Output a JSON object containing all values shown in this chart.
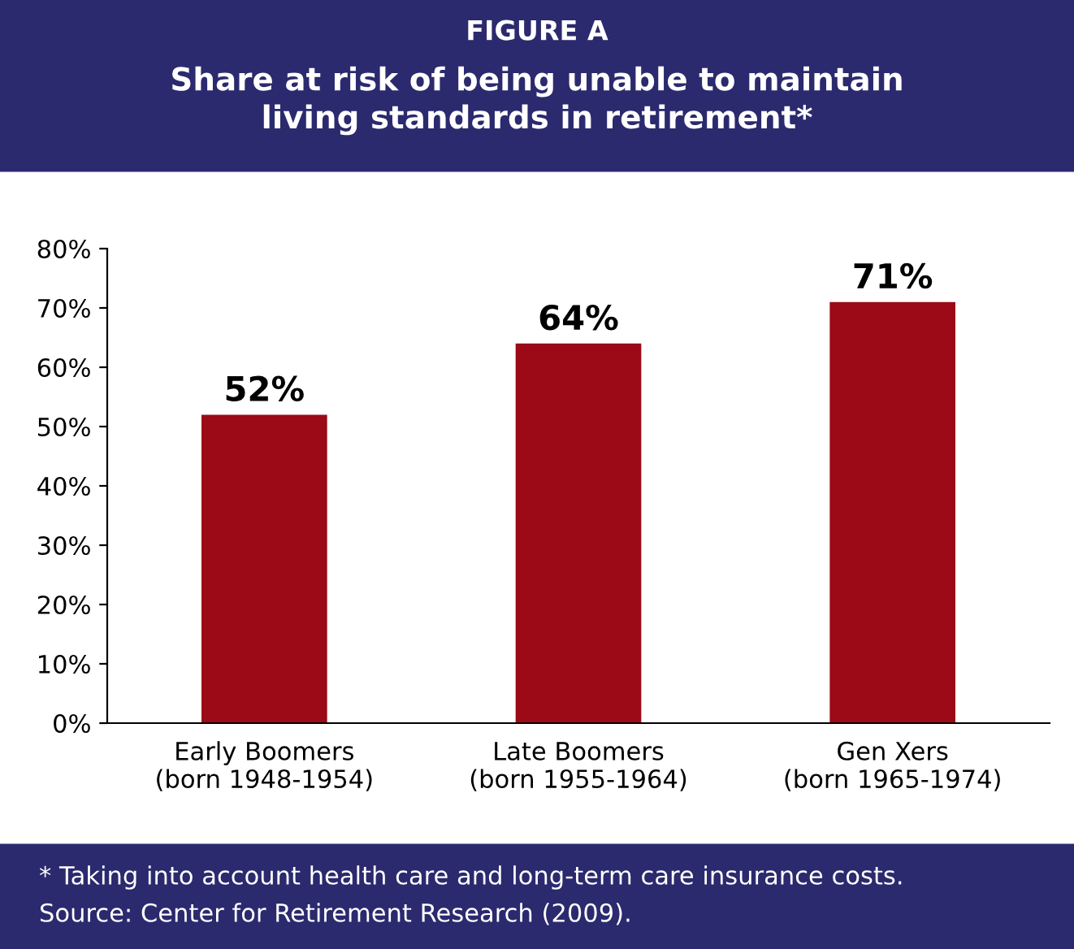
{
  "chart_data": {
    "type": "bar",
    "title": "FIGURE A",
    "subtitle": "Share at risk of being unable to maintain\nliving standards in retirement*",
    "categories": [
      "Early Boomers\n(born 1948-1954)",
      "Late Boomers\n(born 1955-1964)",
      "Gen Xers\n(born 1965-1974)"
    ],
    "values": [
      52,
      64,
      71
    ],
    "color": "#9b0a16",
    "value_labels": [
      "52%",
      "64%",
      "71%"
    ],
    "ylim": [
      0,
      80
    ],
    "yticks": [
      {
        "value": 0,
        "label": "0%"
      },
      {
        "value": 10,
        "label": "10%"
      },
      {
        "value": 20,
        "label": "20%"
      },
      {
        "value": 30,
        "label": "30%"
      },
      {
        "value": 40,
        "label": "40%"
      },
      {
        "value": 50,
        "label": "50%"
      },
      {
        "value": 60,
        "label": "60%"
      },
      {
        "value": 70,
        "label": "70%"
      },
      {
        "value": 80,
        "label": "80%"
      }
    ],
    "grid": false,
    "annotations": [
      "* Taking into account health care and long-term care insurance costs.",
      "Source: Center for Retirement Research (2009)."
    ]
  }
}
